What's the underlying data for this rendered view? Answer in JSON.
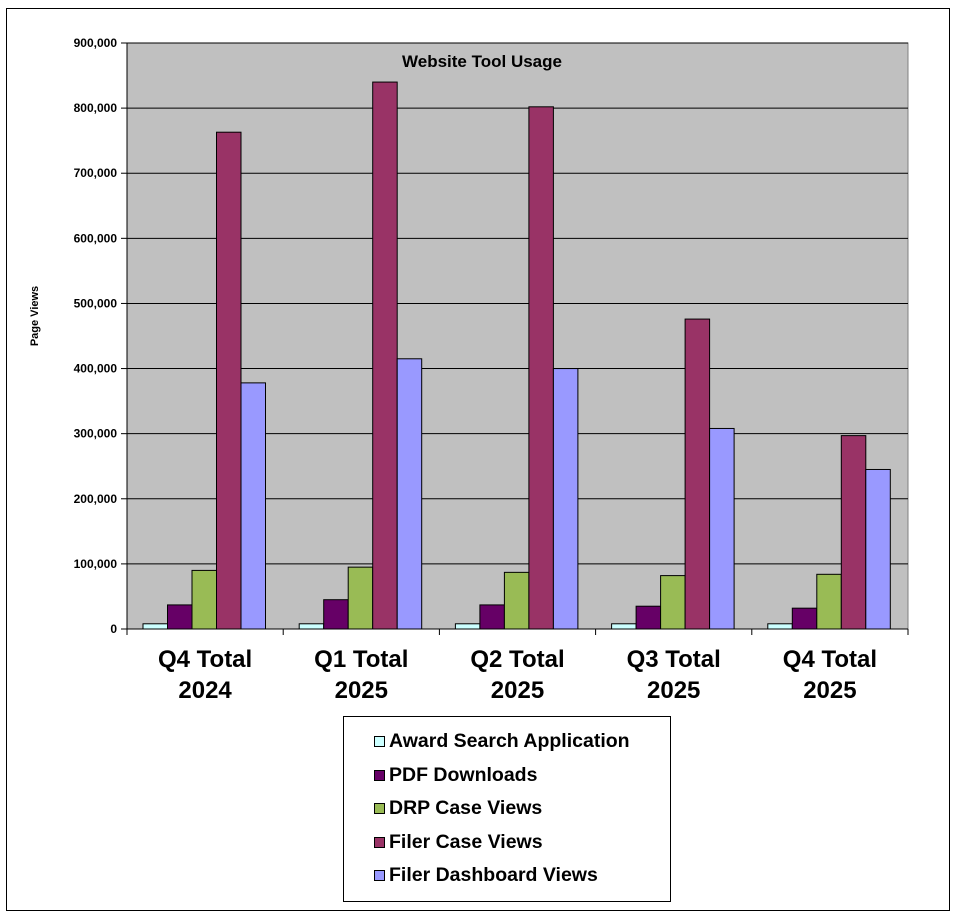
{
  "chart_data": {
    "type": "bar",
    "title": "Website Tool Usage",
    "xlabel": "",
    "ylabel": "Page Views",
    "ylim": [
      0,
      900000
    ],
    "yticks": [
      "0",
      "100,000",
      "200,000",
      "300,000",
      "400,000",
      "500,000",
      "600,000",
      "700,000",
      "800,000",
      "900,000"
    ],
    "categories": [
      [
        "Q4 Total",
        "2024"
      ],
      [
        "Q1 Total",
        "2025"
      ],
      [
        "Q2 Total",
        "2025"
      ],
      [
        "Q3 Total",
        "2025"
      ],
      [
        "Q4 Total",
        "2025"
      ]
    ],
    "grid": true,
    "legend_position": "bottom",
    "series": [
      {
        "name": "Award Search Application",
        "color": "#ccffff",
        "values": [
          8000,
          8000,
          8000,
          8000,
          8000
        ]
      },
      {
        "name": "PDF Downloads",
        "color": "#660066",
        "values": [
          37000,
          45000,
          37000,
          35000,
          32000
        ]
      },
      {
        "name": "DRP Case Views",
        "color": "#99bb55",
        "values": [
          90000,
          95000,
          87000,
          82000,
          84000
        ]
      },
      {
        "name": "Filer Case Views",
        "color": "#993366",
        "values": [
          763000,
          840000,
          802000,
          476000,
          297000
        ]
      },
      {
        "name": "Filer Dashboard Views",
        "color": "#9999ff",
        "values": [
          378000,
          415000,
          400000,
          308000,
          245000
        ]
      }
    ]
  }
}
